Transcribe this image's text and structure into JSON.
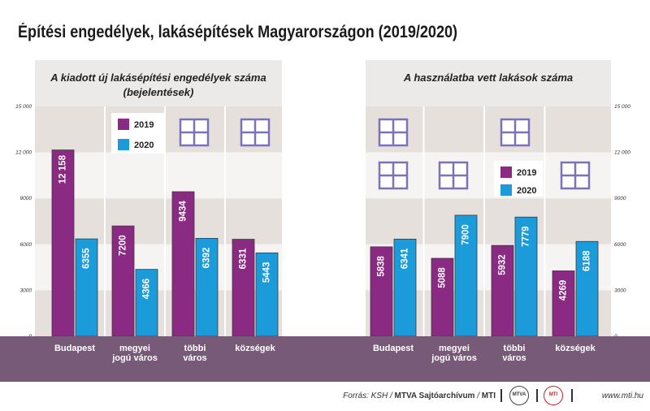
{
  "title": "Építési engedélyek, lakásépítések Magyarországon (2019/2020)",
  "colors": {
    "2019": "#8b2a83",
    "2020": "#1b9bd9",
    "band_dark": "#e6e0dd",
    "band_light": "#f6f4f3",
    "baseline_band": "#775a78",
    "window": "#7b73b8"
  },
  "y_ticks": [
    "15 000",
    "12 000",
    "9000",
    "6000",
    "3000",
    "0"
  ],
  "legend": [
    "2019",
    "2020"
  ],
  "chart_data": [
    {
      "type": "bar",
      "title": "A kiadott új lakásépítési engedélyek száma (bejelentések)",
      "title_lines": [
        "A kiadott új lakásépítési engedélyek száma",
        "(bejelentések)"
      ],
      "categories": [
        "Budapest",
        "megyei jogú város",
        "többi város",
        "községek"
      ],
      "category_lines": [
        [
          "Budapest"
        ],
        [
          "megyei",
          "jogú város"
        ],
        [
          "többi",
          "város"
        ],
        [
          "községek"
        ]
      ],
      "series": [
        {
          "name": "2019",
          "values": [
            12158,
            7200,
            9434,
            6331
          ],
          "labels": [
            "12 158",
            "7200",
            "9434",
            "6331"
          ]
        },
        {
          "name": "2020",
          "values": [
            6355,
            4366,
            6392,
            5443
          ],
          "labels": [
            "6355",
            "4366",
            "6392",
            "5443"
          ]
        }
      ],
      "ylim": [
        0,
        15000
      ],
      "grid": false
    },
    {
      "type": "bar",
      "title": "A használatba vett lakások száma",
      "title_lines": [
        "A használatba vett lakások száma"
      ],
      "categories": [
        "Budapest",
        "megyei jogú város",
        "többi város",
        "községek"
      ],
      "category_lines": [
        [
          "Budapest"
        ],
        [
          "megyei",
          "jogú város"
        ],
        [
          "többi",
          "város"
        ],
        [
          "községek"
        ]
      ],
      "series": [
        {
          "name": "2019",
          "values": [
            5838,
            5088,
            5932,
            4269
          ],
          "labels": [
            "5838",
            "5088",
            "5932",
            "4269"
          ]
        },
        {
          "name": "2020",
          "values": [
            6341,
            7900,
            7779,
            6188
          ],
          "labels": [
            "6341",
            "7900",
            "7779",
            "6188"
          ]
        }
      ],
      "ylim": [
        0,
        15000
      ],
      "grid": false
    }
  ],
  "footer": {
    "source_prefix": "Forrás: KSH / ",
    "source_bold": "MTVA Sajtóarchívum",
    "source_mid": " / ",
    "source_mti": "MTI",
    "logo1": "MTVA",
    "logo2": "MTI",
    "url": "www.mti.hu"
  }
}
